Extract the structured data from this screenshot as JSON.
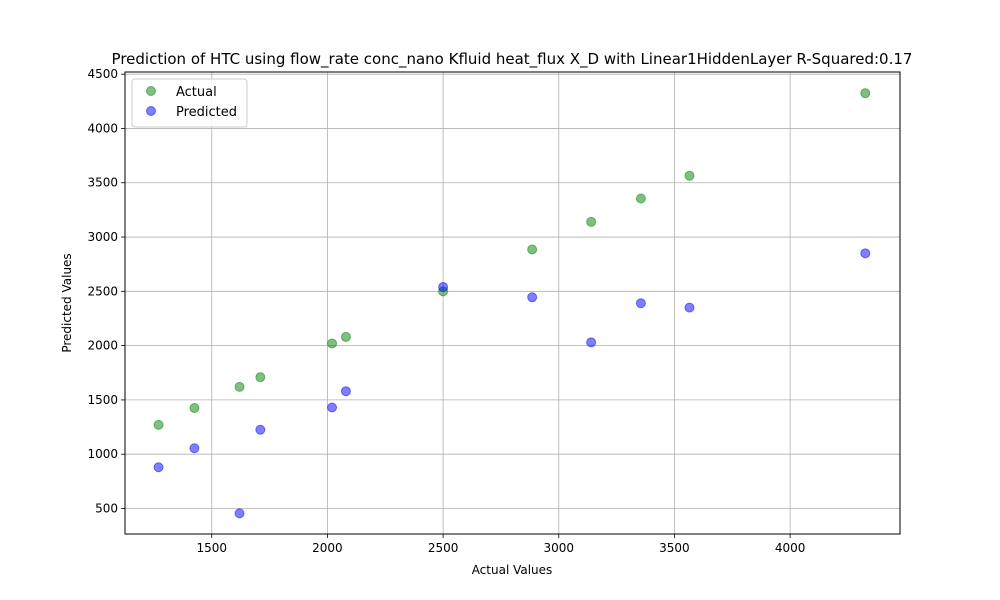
{
  "chart_data": {
    "type": "scatter",
    "title": "Prediction of HTC using flow_rate conc_nano Kfluid heat_flux X_D with Linear1HiddenLayer  R-Squared:0.17",
    "xlabel": "Actual Values",
    "ylabel": "Predicted Values",
    "xlim": [
      1125,
      4475
    ],
    "ylim": [
      265,
      4520
    ],
    "xticks": [
      1500,
      2000,
      2500,
      3000,
      3500,
      4000
    ],
    "yticks": [
      500,
      1000,
      1500,
      2000,
      2500,
      3000,
      3500,
      4000,
      4500
    ],
    "grid": true,
    "legend_position": "top-left",
    "series": [
      {
        "name": "Actual",
        "color": "#008000",
        "x": [
          1270,
          1425,
          1620,
          1710,
          2020,
          2080,
          2500,
          2885,
          3140,
          3355,
          3565,
          4325
        ],
        "y": [
          1270,
          1425,
          1620,
          1710,
          2020,
          2080,
          2500,
          2885,
          3140,
          3355,
          3565,
          4325
        ]
      },
      {
        "name": "Predicted",
        "color": "#0000ff",
        "x": [
          1270,
          1425,
          1620,
          1710,
          2020,
          2080,
          2500,
          2885,
          3140,
          3355,
          3565,
          4325
        ],
        "y": [
          880,
          1055,
          455,
          1225,
          1430,
          1580,
          2540,
          2445,
          2030,
          2390,
          2350,
          2850
        ]
      }
    ]
  }
}
